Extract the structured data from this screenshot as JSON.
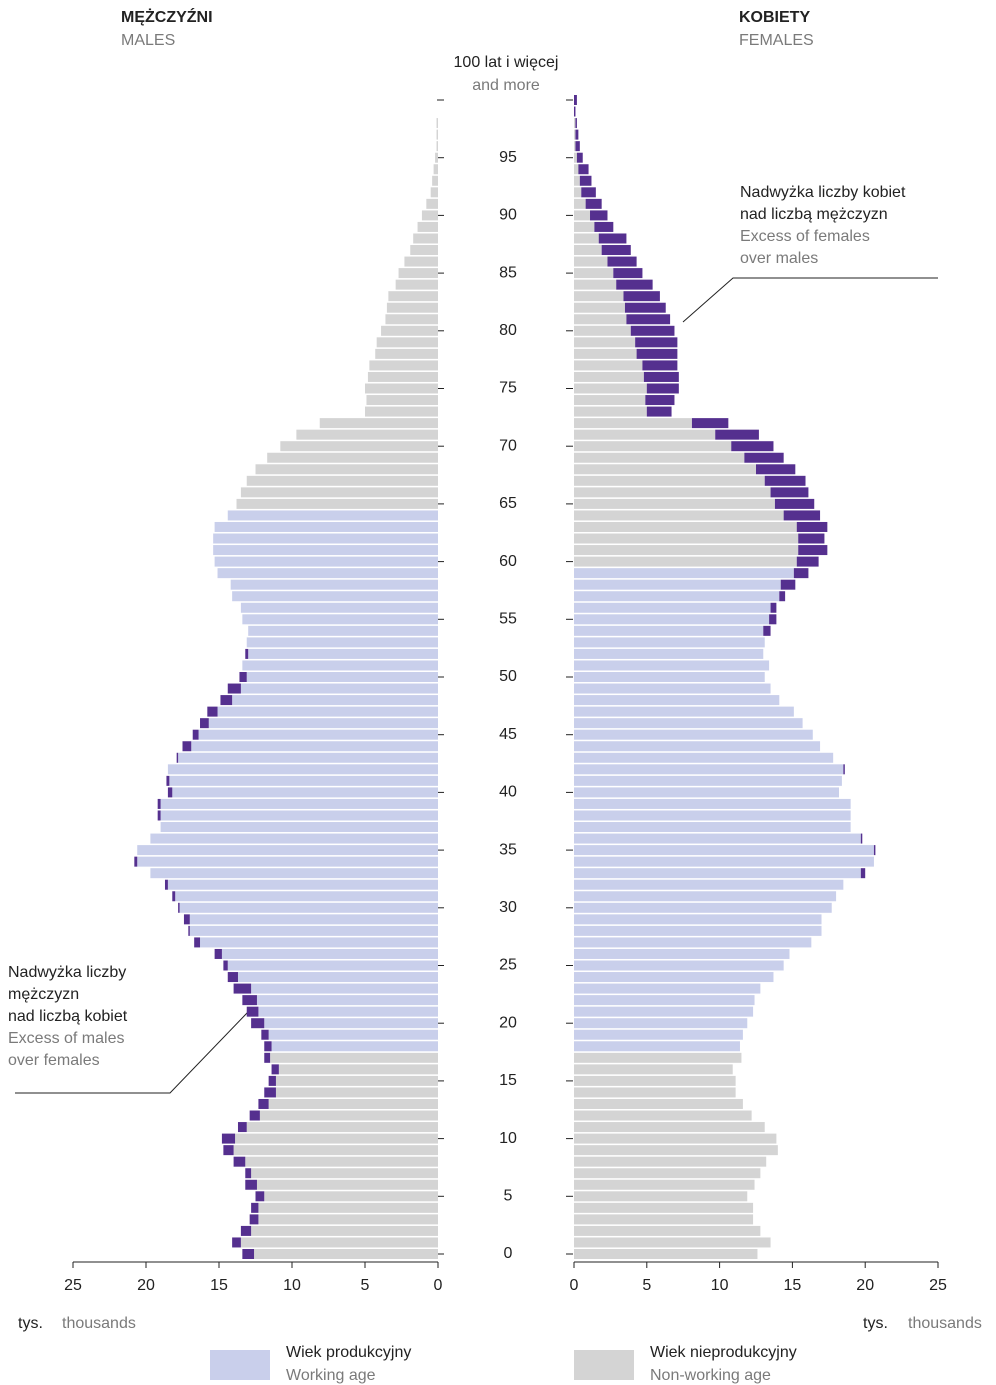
{
  "chart_data": {
    "type": "population_pyramid",
    "series": [
      {
        "name": "MĘŻCZYŹNI",
        "name_en": "MALES",
        "side": "left",
        "working_age": [
          18,
          64
        ],
        "values": [
          13.4,
          14.1,
          13.5,
          12.9,
          12.8,
          12.5,
          13.2,
          13.2,
          14.0,
          14.7,
          14.8,
          13.7,
          12.9,
          12.3,
          11.9,
          11.6,
          11.4,
          11.9,
          11.9,
          12.1,
          12.8,
          13.1,
          13.4,
          14.0,
          14.4,
          14.7,
          15.3,
          16.7,
          17.1,
          17.4,
          17.8,
          18.2,
          18.7,
          19.7,
          20.8,
          20.6,
          19.7,
          19.0,
          19.2,
          19.2,
          18.5,
          18.6,
          18.5,
          17.9,
          17.5,
          16.8,
          16.3,
          15.8,
          14.9,
          14.4,
          13.6,
          13.4,
          13.2,
          13.1,
          13.0,
          13.4,
          13.5,
          14.1,
          14.2,
          15.1,
          15.3,
          15.4,
          15.4,
          15.3,
          14.4,
          13.8,
          13.5,
          13.1,
          12.5,
          11.7,
          10.8,
          9.7,
          8.1,
          5.0,
          4.9,
          5.0,
          4.8,
          4.7,
          4.3,
          4.2,
          3.9,
          3.6,
          3.5,
          3.4,
          2.9,
          2.7,
          2.3,
          1.9,
          1.7,
          1.4,
          1.1,
          0.8,
          0.5,
          0.4,
          0.3,
          0.2,
          0.1,
          0.1,
          0.1,
          0,
          0
        ]
      },
      {
        "name": "KOBIETY",
        "name_en": "FEMALES",
        "side": "right",
        "working_age": [
          18,
          59
        ],
        "values": [
          12.6,
          13.5,
          12.8,
          12.3,
          12.3,
          11.9,
          12.4,
          12.8,
          13.2,
          14.0,
          13.9,
          13.1,
          12.2,
          11.6,
          11.1,
          11.1,
          10.9,
          11.5,
          11.4,
          11.6,
          11.9,
          12.3,
          12.4,
          12.8,
          13.7,
          14.4,
          14.8,
          16.3,
          17.0,
          17.0,
          17.7,
          18.0,
          18.5,
          20.0,
          20.6,
          20.7,
          19.8,
          19.0,
          19.0,
          19.0,
          18.2,
          18.4,
          18.6,
          17.8,
          16.9,
          16.4,
          15.7,
          15.1,
          14.1,
          13.5,
          13.1,
          13.4,
          13.0,
          13.1,
          13.5,
          13.9,
          13.9,
          14.5,
          15.2,
          16.1,
          16.8,
          17.4,
          17.2,
          17.4,
          16.9,
          16.5,
          16.1,
          15.9,
          15.2,
          14.4,
          13.7,
          12.7,
          10.6,
          6.7,
          6.9,
          7.2,
          7.2,
          7.1,
          7.1,
          7.1,
          6.9,
          6.6,
          6.3,
          5.9,
          5.4,
          4.7,
          4.3,
          3.9,
          3.6,
          2.7,
          2.3,
          1.9,
          1.5,
          1.2,
          1.0,
          0.6,
          0.4,
          0.3,
          0.2,
          0.1,
          0.2
        ]
      }
    ],
    "categories": [
      0,
      1,
      2,
      3,
      4,
      5,
      6,
      7,
      8,
      9,
      10,
      11,
      12,
      13,
      14,
      15,
      16,
      17,
      18,
      19,
      20,
      21,
      22,
      23,
      24,
      25,
      26,
      27,
      28,
      29,
      30,
      31,
      32,
      33,
      34,
      35,
      36,
      37,
      38,
      39,
      40,
      41,
      42,
      43,
      44,
      45,
      46,
      47,
      48,
      49,
      50,
      51,
      52,
      53,
      54,
      55,
      56,
      57,
      58,
      59,
      60,
      61,
      62,
      63,
      64,
      65,
      66,
      67,
      68,
      69,
      70,
      71,
      72,
      73,
      74,
      75,
      76,
      77,
      78,
      79,
      80,
      81,
      82,
      83,
      84,
      85,
      86,
      87,
      88,
      89,
      90,
      91,
      92,
      93,
      94,
      95,
      96,
      97,
      98,
      99,
      100
    ],
    "ylim": [
      0,
      100
    ],
    "yticks": [
      0,
      5,
      10,
      15,
      20,
      25,
      30,
      35,
      40,
      45,
      50,
      55,
      60,
      65,
      70,
      75,
      80,
      85,
      90,
      95
    ],
    "top_tick": {
      "value": 100,
      "label": "100 lat i więcej",
      "label_en": "and more"
    },
    "xlim": [
      0,
      25
    ],
    "xticks": [
      0,
      5,
      10,
      15,
      20,
      25
    ],
    "xlabel": "tys.",
    "xlabel_en": "thousands",
    "colors": {
      "working": "#c9cfeb",
      "nonworking": "#d4d4d4",
      "excess": "#55308f"
    },
    "legend": [
      {
        "label": "Wiek produkcyjny",
        "label_en": "Working age",
        "color": "#c9cfeb"
      },
      {
        "label": "Wiek nieprodukcyjny",
        "label_en": "Non-working age",
        "color": "#d4d4d4"
      }
    ],
    "annotations": [
      {
        "lines": [
          "Nadwyżka liczby kobiet",
          "nad liczbą mężczyzn"
        ],
        "lines_en": [
          "Excess of females",
          "over males"
        ]
      },
      {
        "lines": [
          "Nadwyżka liczby",
          "mężczyzn",
          "nad liczbą kobiet"
        ],
        "lines_en": [
          "Excess of males",
          "over females"
        ]
      }
    ]
  }
}
